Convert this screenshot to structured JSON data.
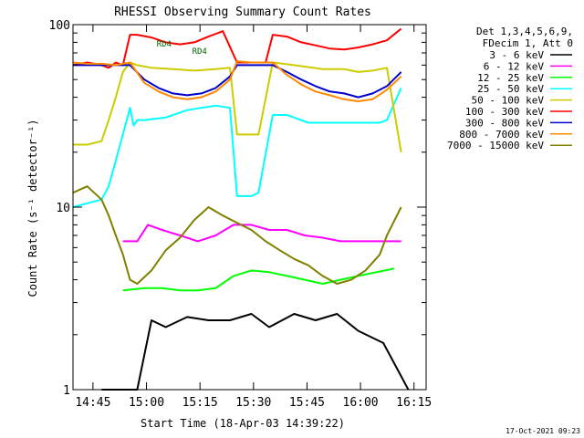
{
  "chart_data": {
    "type": "line",
    "title": "RHESSI Observing Summary Count Rates",
    "xlabel": "Start Time (18-Apr-03 14:39:22)",
    "ylabel": "Count Rate (s⁻¹ detector⁻¹)",
    "yscale": "log",
    "ylim": [
      1,
      100
    ],
    "xlim_minutes_after_start": [
      0,
      99
    ],
    "x_tick_labels": [
      "14:45",
      "15:00",
      "15:15",
      "15:30",
      "15:45",
      "16:00",
      "16:15"
    ],
    "x_tick_positions_minutes": [
      5.6,
      20.6,
      35.6,
      50.6,
      65.6,
      80.6,
      95.6
    ],
    "y_tick_labels": [
      "1",
      "10",
      "100"
    ],
    "y_tick_values": [
      1,
      10,
      100
    ],
    "legend_header": [
      "Det 1,3,4,5,6,9,",
      "FDecim 1, Att 0"
    ],
    "legend_position": "right",
    "annotations": [
      "RD4",
      "RD4"
    ],
    "timestamp": "17-Oct-2021 09:23",
    "series": [
      {
        "name": "3 - 6 keV",
        "color": "#000000",
        "x": [
          8,
          18,
          22,
          26,
          32,
          38,
          44,
          50,
          55,
          62,
          68,
          74,
          80,
          87,
          94
        ],
        "y": [
          1,
          1,
          2.4,
          2.2,
          2.5,
          2.4,
          2.4,
          2.6,
          2.2,
          2.6,
          2.4,
          2.6,
          2.1,
          1.8,
          1
        ]
      },
      {
        "name": "6 - 12 keV",
        "color": "#ff00ff",
        "x": [
          14,
          18,
          21,
          25,
          30,
          35,
          40,
          45,
          50,
          55,
          60,
          65,
          70,
          75,
          80,
          86,
          92
        ],
        "y": [
          6.5,
          6.5,
          8,
          7.5,
          7.0,
          6.5,
          7.0,
          8.0,
          8.0,
          7.5,
          7.5,
          7.0,
          6.8,
          6.5,
          6.5,
          6.5,
          6.5
        ]
      },
      {
        "name": "12 - 25 keV",
        "color": "#00ff00",
        "x": [
          14,
          20,
          25,
          30,
          35,
          40,
          45,
          50,
          55,
          60,
          65,
          70,
          75,
          80,
          85,
          90
        ],
        "y": [
          3.5,
          3.6,
          3.6,
          3.5,
          3.5,
          3.6,
          4.2,
          4.5,
          4.4,
          4.2,
          4.0,
          3.8,
          4.0,
          4.2,
          4.4,
          4.6
        ]
      },
      {
        "name": "25 - 50 keV",
        "color": "#00ffff",
        "x": [
          0,
          4,
          8,
          10,
          12,
          14,
          16,
          17,
          18,
          20,
          26,
          32,
          36,
          40,
          44,
          46,
          48,
          50,
          52,
          56,
          60,
          66,
          70,
          74,
          78,
          82,
          86,
          88,
          92
        ],
        "y": [
          10,
          10.5,
          11,
          13,
          18,
          25,
          35,
          28,
          30,
          30,
          31,
          34,
          35,
          36,
          35,
          11.5,
          11.5,
          11.5,
          12,
          32,
          32,
          29,
          29,
          29,
          29,
          29,
          29,
          30,
          45
        ]
      },
      {
        "name": "50 - 100 keV",
        "color": "#cccc00",
        "x": [
          0,
          4,
          8,
          10,
          12,
          14,
          16,
          18,
          22,
          28,
          34,
          40,
          44,
          46,
          50,
          52,
          56,
          62,
          70,
          76,
          80,
          84,
          88,
          92
        ],
        "y": [
          22,
          22,
          23,
          30,
          40,
          55,
          62,
          60,
          58,
          57,
          56,
          57,
          58,
          25,
          25,
          25,
          62,
          60,
          57,
          57,
          55,
          56,
          58,
          20
        ]
      },
      {
        "name": "100 - 300 keV",
        "color": "#ff0000",
        "x": [
          0,
          4,
          8,
          10,
          12,
          14,
          16,
          18,
          22,
          26,
          30,
          34,
          38,
          42,
          46,
          50,
          54,
          56,
          60,
          64,
          68,
          72,
          76,
          80,
          84,
          88,
          92
        ],
        "y": [
          60,
          62,
          60,
          58,
          62,
          60,
          88,
          88,
          85,
          80,
          78,
          80,
          86,
          92,
          62,
          62,
          62,
          88,
          86,
          80,
          77,
          74,
          73,
          75,
          78,
          82,
          95
        ]
      },
      {
        "name": "300 - 800 keV",
        "color": "#0000cc",
        "x": [
          0,
          4,
          8,
          12,
          16,
          20,
          24,
          28,
          32,
          36,
          40,
          44,
          46,
          50,
          52,
          56,
          60,
          64,
          68,
          72,
          76,
          80,
          84,
          88,
          92
        ],
        "y": [
          60,
          60,
          60,
          60,
          60,
          50,
          45,
          42,
          41,
          42,
          45,
          52,
          60,
          60,
          60,
          60,
          55,
          50,
          46,
          43,
          42,
          40,
          42,
          46,
          55
        ]
      },
      {
        "name": "800 - 7000 keV",
        "color": "#ff8800",
        "x": [
          0,
          4,
          8,
          12,
          16,
          20,
          24,
          28,
          32,
          36,
          40,
          44,
          46,
          50,
          52,
          56,
          60,
          64,
          68,
          72,
          76,
          80,
          84,
          88,
          92
        ],
        "y": [
          62,
          61,
          61,
          60,
          62,
          48,
          43,
          40,
          39,
          40,
          43,
          50,
          63,
          62,
          62,
          62,
          53,
          47,
          43,
          41,
          39,
          38,
          39,
          44,
          52
        ]
      },
      {
        "name": "7000 - 15000 keV",
        "color": "#808000",
        "x": [
          0,
          4,
          8,
          10,
          12,
          14,
          16,
          18,
          22,
          26,
          30,
          34,
          38,
          42,
          46,
          50,
          54,
          58,
          62,
          66,
          70,
          74,
          78,
          82,
          86,
          88,
          92
        ],
        "y": [
          12,
          13,
          11,
          9,
          7,
          5.5,
          4,
          3.8,
          4.5,
          5.8,
          6.8,
          8.5,
          10,
          9,
          8.2,
          7.5,
          6.5,
          5.8,
          5.2,
          4.8,
          4.2,
          3.8,
          4,
          4.5,
          5.5,
          7,
          10
        ]
      }
    ]
  }
}
